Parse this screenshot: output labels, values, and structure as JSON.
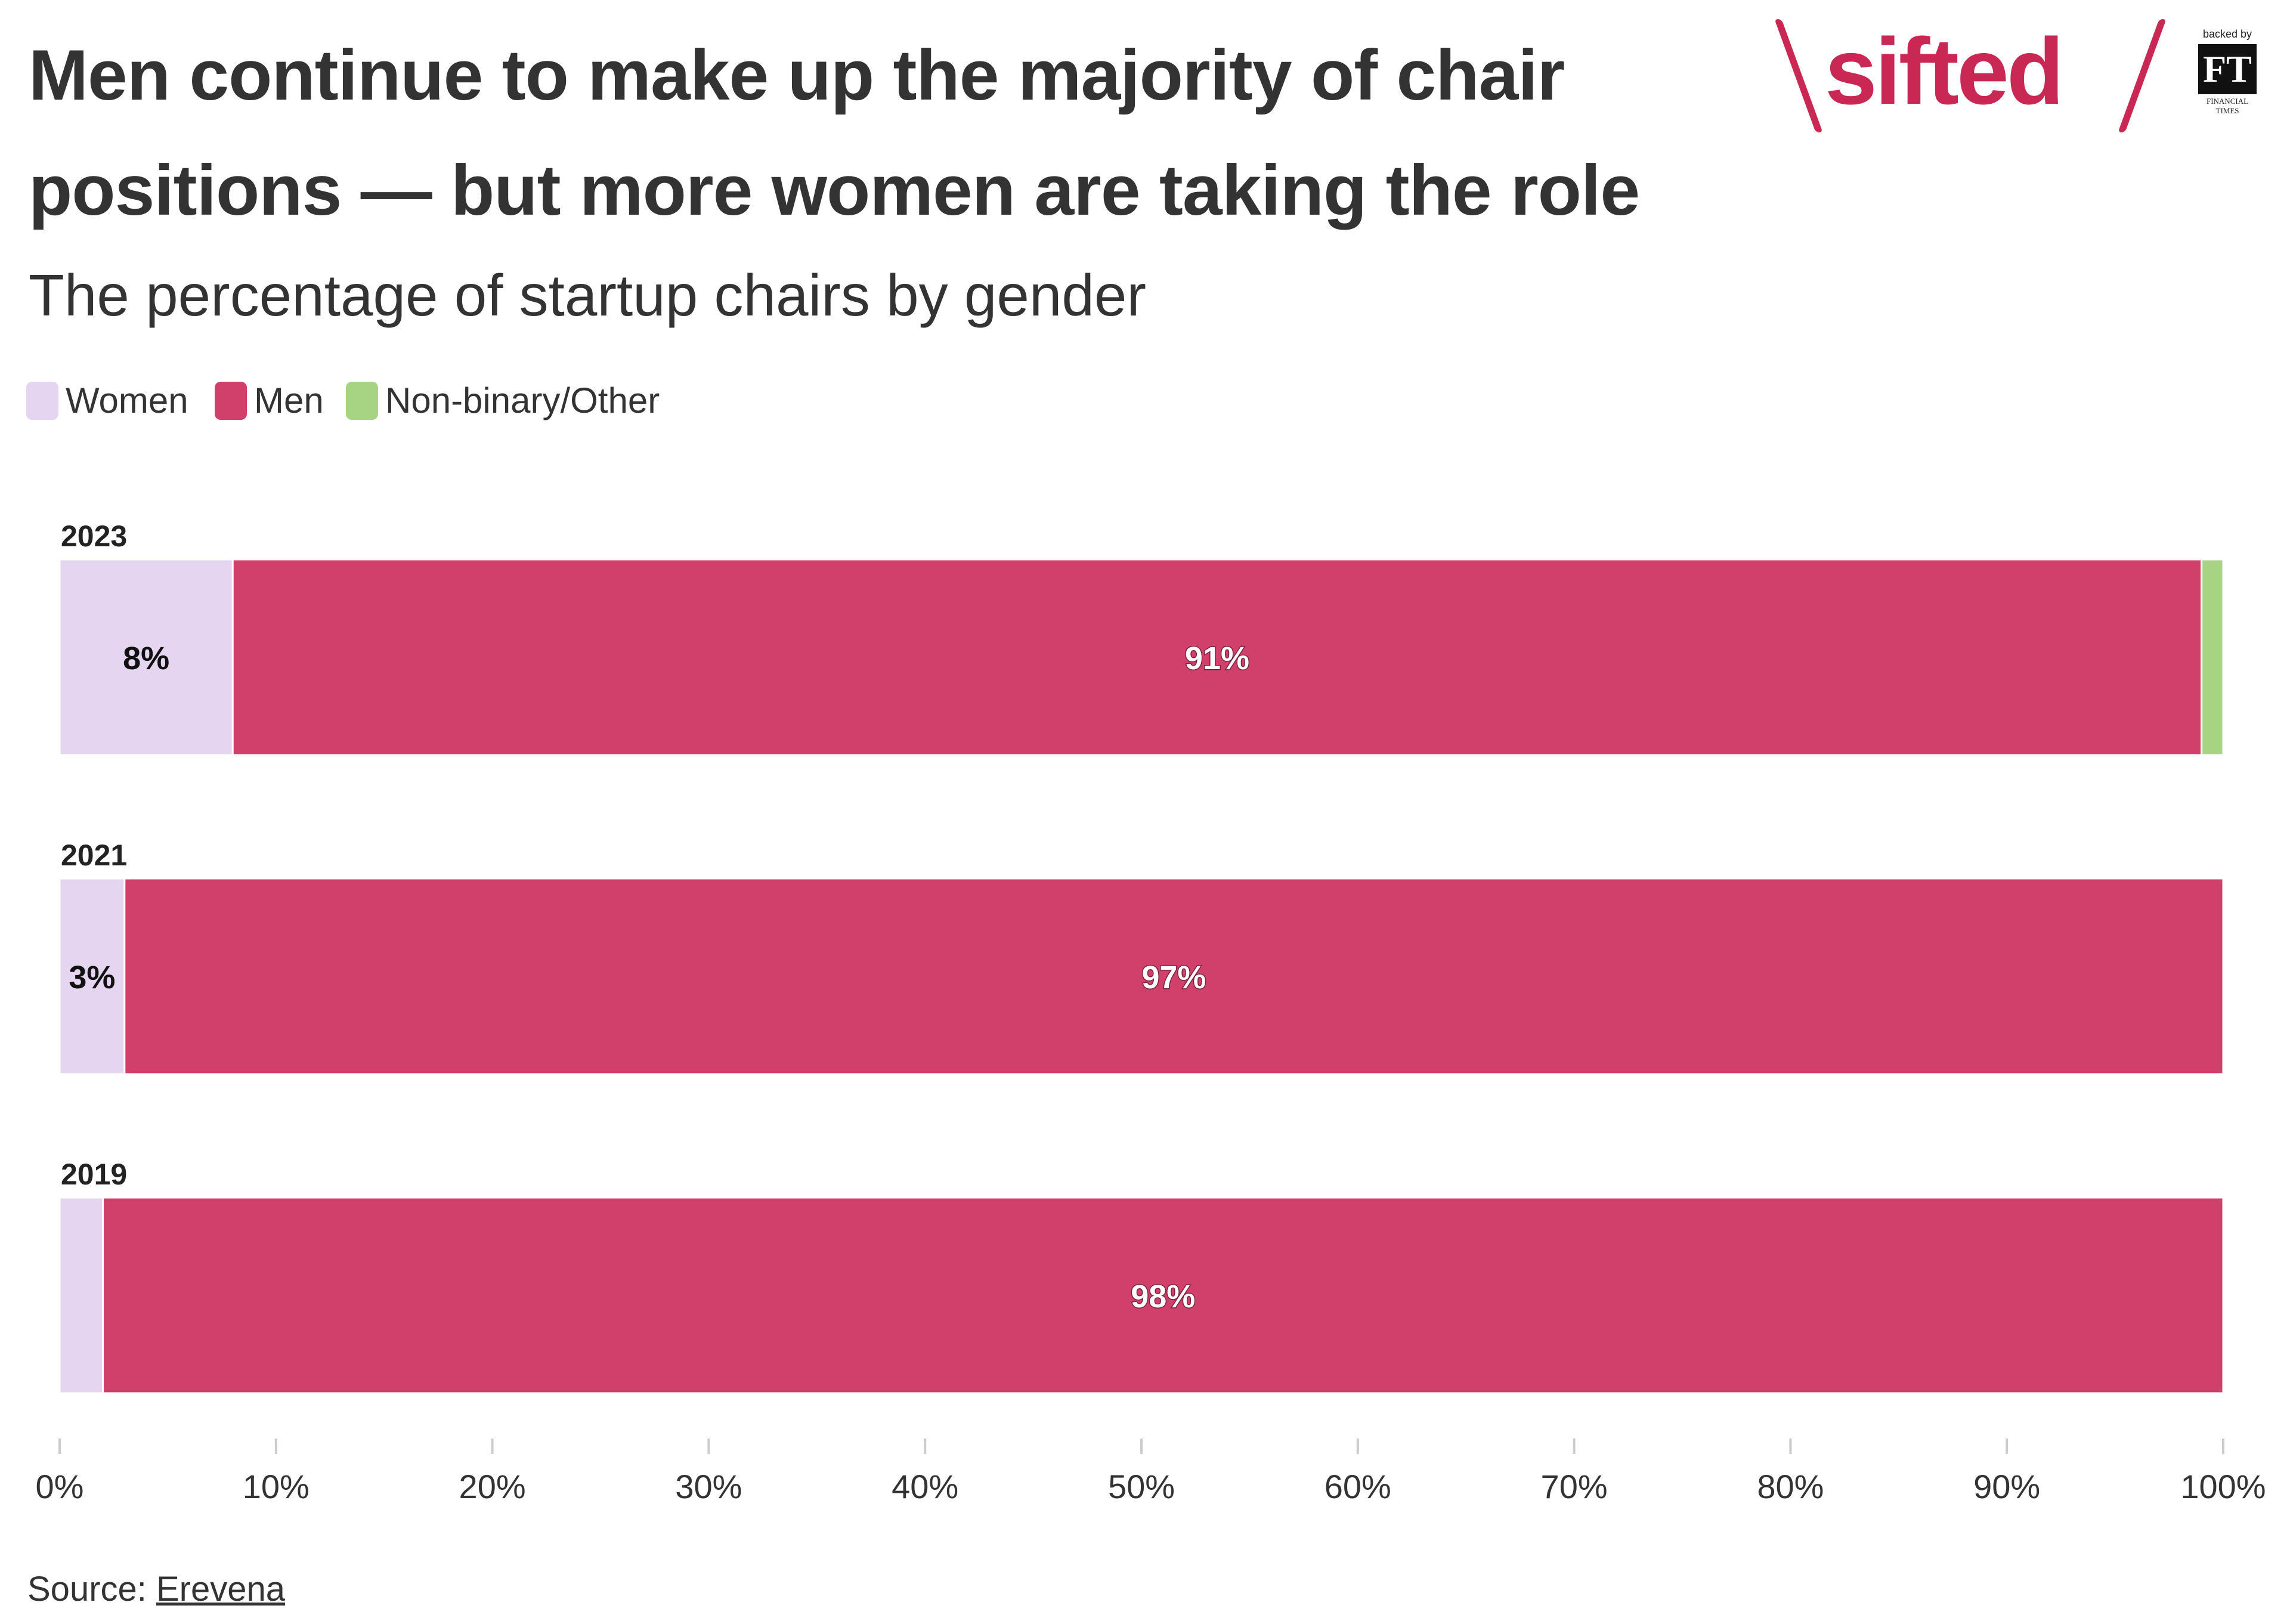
{
  "header": {
    "title": "Men continue to make up the majority of chair positions — but more women are taking the role",
    "subtitle": "The percentage of startup chairs by gender"
  },
  "logo": {
    "wordmark": "sifted",
    "backed_by": "backed by",
    "ft_mark": "FT",
    "ft_subtext": "FINANCIAL TIMES",
    "brand_color": "#c92855"
  },
  "legend": [
    {
      "label": "Women",
      "color": "#e6d5f0"
    },
    {
      "label": "Men",
      "color": "#d0406a"
    },
    {
      "label": "Non-binary/Other",
      "color": "#a7d483"
    }
  ],
  "chart_data": {
    "type": "bar",
    "orientation": "horizontal",
    "stacked": true,
    "categories": [
      "2023",
      "2021",
      "2019"
    ],
    "series": [
      {
        "name": "Women",
        "values": [
          8,
          3,
          2
        ],
        "labels": [
          "8%",
          "3%",
          ""
        ]
      },
      {
        "name": "Men",
        "values": [
          91,
          97,
          98
        ],
        "labels": [
          "91%",
          "97%",
          "98%"
        ]
      },
      {
        "name": "Non-binary/Other",
        "values": [
          1,
          0,
          0
        ],
        "labels": [
          "",
          "",
          ""
        ]
      }
    ],
    "xlim": [
      0,
      100
    ],
    "x_ticks": [
      "0%",
      "10%",
      "20%",
      "30%",
      "40%",
      "50%",
      "60%",
      "70%",
      "80%",
      "90%",
      "100%"
    ],
    "grid": false,
    "legend_position": "top-left"
  },
  "footer": {
    "source_prefix": "Source: ",
    "source_name": "Erevena"
  }
}
